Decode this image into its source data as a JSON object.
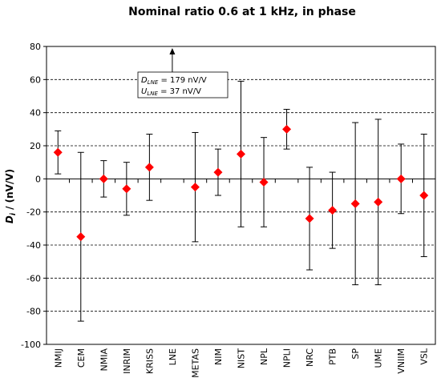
{
  "chart_data": {
    "type": "scatter",
    "title": "Nominal ratio 0.6 at 1 kHz, in phase",
    "ylabel": "D_i / (nV/V)",
    "ylabel_main": "D",
    "ylabel_sub": "i",
    "ylabel_rest": " / (nV/V)",
    "ylim": [
      -100,
      80
    ],
    "yticks": [
      -100,
      -80,
      -60,
      -40,
      -20,
      0,
      20,
      40,
      60,
      80
    ],
    "grid": true,
    "marker_color": "#ff0000",
    "categories": [
      "NMIJ",
      "CEM",
      "NMIA",
      "INRIM",
      "KRISS",
      "LNE",
      "METAS",
      "NIM",
      "NIST",
      "NPL",
      "NPLI",
      "NRC",
      "PTB",
      "SP",
      "UME",
      "VNIIM",
      "VSL"
    ],
    "series": [
      {
        "values": [
          16,
          -35,
          0,
          -6,
          7,
          null,
          -5,
          4,
          15,
          -2,
          30,
          -24,
          -19,
          -15,
          -14,
          0,
          -10
        ],
        "error_lower": [
          3,
          -86,
          -11,
          -22,
          -13,
          null,
          -38,
          -10,
          -29,
          -29,
          18,
          -55,
          -42,
          -64,
          -64,
          -21,
          -47
        ],
        "error_upper": [
          29,
          16,
          11,
          10,
          27,
          null,
          28,
          18,
          59,
          25,
          42,
          7,
          4,
          34,
          36,
          21,
          27
        ]
      }
    ],
    "annotation": {
      "category": "LNE",
      "d_main": "D",
      "d_sub": "LNE",
      "d_value": " = 179 nV/V",
      "u_main": "U",
      "u_sub": "LNE",
      "u_value": " = 37 nV/V"
    }
  }
}
